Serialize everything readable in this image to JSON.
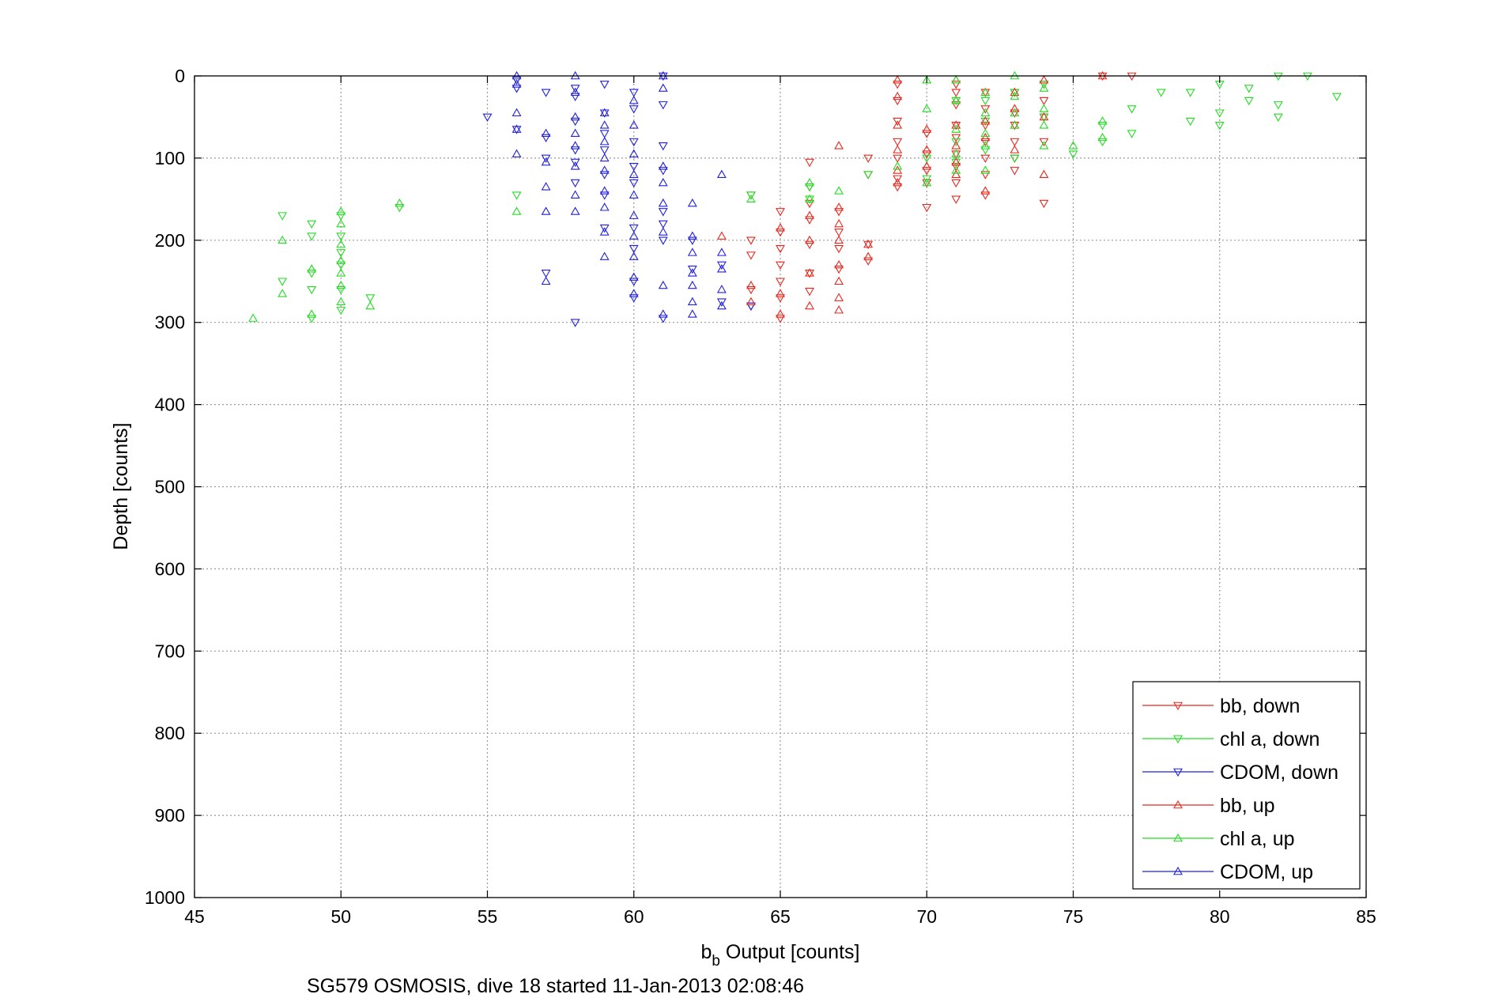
{
  "chart_data": {
    "type": "scatter",
    "title": "",
    "xlabel": {
      "base": "b",
      "sub": "b",
      "rest": " Output [counts]"
    },
    "ylabel": "Depth [counts]",
    "caption": "SG579 OSMOSIS, dive 18 started 11-Jan-2013 02:08:46",
    "xlim": [
      45,
      85
    ],
    "ylim": [
      0,
      1000
    ],
    "y_reversed": true,
    "grid": true,
    "legend_position": "bottom-right",
    "x_ticks": [
      "45",
      "50",
      "55",
      "60",
      "65",
      "70",
      "75",
      "80",
      "85"
    ],
    "y_ticks": [
      "0",
      "100",
      "200",
      "300",
      "400",
      "500",
      "600",
      "700",
      "800",
      "900",
      "1000"
    ],
    "series": [
      {
        "name": "bb, down",
        "color": "#e8281e",
        "marker": "triangle-down",
        "points": [
          [
            64,
            145
          ],
          [
            64,
            200
          ],
          [
            64,
            218
          ],
          [
            64,
            260
          ],
          [
            64,
            280
          ],
          [
            65,
            165
          ],
          [
            65,
            190
          ],
          [
            65,
            210
          ],
          [
            65,
            230
          ],
          [
            65,
            250
          ],
          [
            65,
            270
          ],
          [
            65,
            295
          ],
          [
            66,
            105
          ],
          [
            66,
            135
          ],
          [
            66,
            155
          ],
          [
            66,
            175
          ],
          [
            66,
            205
          ],
          [
            66,
            240
          ],
          [
            66,
            262
          ],
          [
            67,
            165
          ],
          [
            67,
            190
          ],
          [
            67,
            210
          ],
          [
            67,
            235
          ],
          [
            68,
            100
          ],
          [
            68,
            120
          ],
          [
            68,
            205
          ],
          [
            68,
            225
          ],
          [
            69,
            10
          ],
          [
            69,
            30
          ],
          [
            69,
            55
          ],
          [
            69,
            80
          ],
          [
            69,
            100
          ],
          [
            69,
            125
          ],
          [
            69,
            135
          ],
          [
            70,
            70
          ],
          [
            70,
            95
          ],
          [
            70,
            115
          ],
          [
            70,
            130
          ],
          [
            70,
            160
          ],
          [
            71,
            10
          ],
          [
            71,
            20
          ],
          [
            71,
            35
          ],
          [
            71,
            60
          ],
          [
            71,
            75
          ],
          [
            71,
            95
          ],
          [
            71,
            110
          ],
          [
            71,
            130
          ],
          [
            71,
            150
          ],
          [
            72,
            20
          ],
          [
            72,
            40
          ],
          [
            72,
            60
          ],
          [
            72,
            80
          ],
          [
            72,
            100
          ],
          [
            72,
            120
          ],
          [
            72,
            145
          ],
          [
            73,
            20
          ],
          [
            73,
            45
          ],
          [
            73,
            60
          ],
          [
            73,
            80
          ],
          [
            73,
            100
          ],
          [
            73,
            115
          ],
          [
            74,
            10
          ],
          [
            74,
            30
          ],
          [
            74,
            50
          ],
          [
            74,
            80
          ],
          [
            74,
            155
          ],
          [
            76,
            0
          ],
          [
            77,
            0
          ]
        ]
      },
      {
        "name": "chl a, down",
        "color": "#22dd22",
        "marker": "triangle-down",
        "points": [
          [
            48,
            170
          ],
          [
            48,
            250
          ],
          [
            49,
            180
          ],
          [
            49,
            195
          ],
          [
            49,
            240
          ],
          [
            49,
            260
          ],
          [
            49,
            295
          ],
          [
            50,
            170
          ],
          [
            50,
            195
          ],
          [
            50,
            215
          ],
          [
            50,
            230
          ],
          [
            50,
            260
          ],
          [
            50,
            285
          ],
          [
            51,
            270
          ],
          [
            52,
            160
          ],
          [
            56,
            145
          ],
          [
            64,
            145
          ],
          [
            66,
            135
          ],
          [
            66,
            150
          ],
          [
            68,
            120
          ],
          [
            70,
            100
          ],
          [
            70,
            125
          ],
          [
            71,
            30
          ],
          [
            71,
            80
          ],
          [
            71,
            105
          ],
          [
            72,
            30
          ],
          [
            72,
            55
          ],
          [
            72,
            90
          ],
          [
            73,
            20
          ],
          [
            73,
            100
          ],
          [
            74,
            10
          ],
          [
            74,
            50
          ],
          [
            75,
            95
          ],
          [
            76,
            60
          ],
          [
            76,
            80
          ],
          [
            77,
            40
          ],
          [
            77,
            70
          ],
          [
            78,
            20
          ],
          [
            79,
            20
          ],
          [
            79,
            55
          ],
          [
            80,
            10
          ],
          [
            80,
            45
          ],
          [
            80,
            60
          ],
          [
            81,
            15
          ],
          [
            81,
            30
          ],
          [
            82,
            0
          ],
          [
            82,
            35
          ],
          [
            82,
            50
          ],
          [
            83,
            0
          ],
          [
            84,
            25
          ]
        ]
      },
      {
        "name": "CDOM, down",
        "color": "#2020dd",
        "marker": "triangle-down",
        "points": [
          [
            55,
            50
          ],
          [
            56,
            5
          ],
          [
            56,
            15
          ],
          [
            56,
            65
          ],
          [
            57,
            20
          ],
          [
            57,
            75
          ],
          [
            57,
            100
          ],
          [
            57,
            240
          ],
          [
            58,
            15
          ],
          [
            58,
            25
          ],
          [
            58,
            55
          ],
          [
            58,
            90
          ],
          [
            58,
            105
          ],
          [
            58,
            130
          ],
          [
            58,
            300
          ],
          [
            59,
            10
          ],
          [
            59,
            45
          ],
          [
            59,
            70
          ],
          [
            59,
            90
          ],
          [
            59,
            120
          ],
          [
            59,
            145
          ],
          [
            59,
            185
          ],
          [
            60,
            20
          ],
          [
            60,
            40
          ],
          [
            60,
            80
          ],
          [
            60,
            110
          ],
          [
            60,
            130
          ],
          [
            60,
            185
          ],
          [
            60,
            210
          ],
          [
            60,
            250
          ],
          [
            60,
            270
          ],
          [
            61,
            0
          ],
          [
            61,
            35
          ],
          [
            61,
            85
          ],
          [
            61,
            115
          ],
          [
            61,
            165
          ],
          [
            61,
            180
          ],
          [
            61,
            200
          ],
          [
            61,
            295
          ],
          [
            62,
            200
          ],
          [
            62,
            235
          ],
          [
            63,
            230
          ],
          [
            63,
            275
          ],
          [
            64,
            280
          ]
        ]
      },
      {
        "name": "bb, up",
        "color": "#e8281e",
        "marker": "triangle-up",
        "points": [
          [
            63,
            195
          ],
          [
            64,
            255
          ],
          [
            64,
            275
          ],
          [
            65,
            185
          ],
          [
            65,
            265
          ],
          [
            65,
            290
          ],
          [
            66,
            170
          ],
          [
            66,
            200
          ],
          [
            66,
            240
          ],
          [
            66,
            280
          ],
          [
            67,
            85
          ],
          [
            67,
            160
          ],
          [
            67,
            180
          ],
          [
            67,
            200
          ],
          [
            67,
            230
          ],
          [
            67,
            250
          ],
          [
            67,
            270
          ],
          [
            67,
            285
          ],
          [
            68,
            205
          ],
          [
            68,
            220
          ],
          [
            69,
            5
          ],
          [
            69,
            25
          ],
          [
            69,
            60
          ],
          [
            69,
            90
          ],
          [
            69,
            115
          ],
          [
            69,
            130
          ],
          [
            70,
            65
          ],
          [
            70,
            90
          ],
          [
            70,
            110
          ],
          [
            71,
            5
          ],
          [
            71,
            30
          ],
          [
            71,
            60
          ],
          [
            71,
            85
          ],
          [
            71,
            105
          ],
          [
            71,
            120
          ],
          [
            72,
            20
          ],
          [
            72,
            55
          ],
          [
            72,
            75
          ],
          [
            72,
            140
          ],
          [
            73,
            20
          ],
          [
            73,
            40
          ],
          [
            73,
            60
          ],
          [
            73,
            90
          ],
          [
            74,
            5
          ],
          [
            74,
            50
          ],
          [
            74,
            120
          ],
          [
            76,
            0
          ]
        ]
      },
      {
        "name": "chl a, up",
        "color": "#22dd22",
        "marker": "triangle-up",
        "points": [
          [
            47,
            295
          ],
          [
            48,
            200
          ],
          [
            48,
            265
          ],
          [
            49,
            235
          ],
          [
            49,
            290
          ],
          [
            50,
            165
          ],
          [
            50,
            180
          ],
          [
            50,
            205
          ],
          [
            50,
            225
          ],
          [
            50,
            240
          ],
          [
            50,
            255
          ],
          [
            50,
            275
          ],
          [
            51,
            280
          ],
          [
            52,
            155
          ],
          [
            56,
            165
          ],
          [
            64,
            150
          ],
          [
            66,
            130
          ],
          [
            66,
            150
          ],
          [
            67,
            140
          ],
          [
            69,
            110
          ],
          [
            70,
            5
          ],
          [
            70,
            40
          ],
          [
            70,
            130
          ],
          [
            71,
            5
          ],
          [
            71,
            30
          ],
          [
            71,
            65
          ],
          [
            71,
            95
          ],
          [
            71,
            115
          ],
          [
            72,
            20
          ],
          [
            72,
            45
          ],
          [
            72,
            70
          ],
          [
            72,
            85
          ],
          [
            72,
            115
          ],
          [
            73,
            0
          ],
          [
            73,
            25
          ],
          [
            73,
            45
          ],
          [
            73,
            60
          ],
          [
            74,
            15
          ],
          [
            74,
            40
          ],
          [
            74,
            60
          ],
          [
            74,
            85
          ],
          [
            75,
            85
          ],
          [
            76,
            55
          ],
          [
            76,
            75
          ]
        ]
      },
      {
        "name": "CDOM, up",
        "color": "#2020dd",
        "marker": "triangle-up",
        "points": [
          [
            56,
            0
          ],
          [
            56,
            10
          ],
          [
            56,
            45
          ],
          [
            56,
            65
          ],
          [
            56,
            95
          ],
          [
            57,
            70
          ],
          [
            57,
            105
          ],
          [
            57,
            135
          ],
          [
            57,
            165
          ],
          [
            57,
            250
          ],
          [
            58,
            0
          ],
          [
            58,
            20
          ],
          [
            58,
            50
          ],
          [
            58,
            70
          ],
          [
            58,
            85
          ],
          [
            58,
            110
          ],
          [
            58,
            145
          ],
          [
            58,
            165
          ],
          [
            59,
            45
          ],
          [
            59,
            60
          ],
          [
            59,
            80
          ],
          [
            59,
            100
          ],
          [
            59,
            115
          ],
          [
            59,
            140
          ],
          [
            59,
            160
          ],
          [
            59,
            190
          ],
          [
            59,
            220
          ],
          [
            60,
            30
          ],
          [
            60,
            60
          ],
          [
            60,
            95
          ],
          [
            60,
            120
          ],
          [
            60,
            145
          ],
          [
            60,
            170
          ],
          [
            60,
            195
          ],
          [
            60,
            220
          ],
          [
            60,
            245
          ],
          [
            60,
            265
          ],
          [
            61,
            0
          ],
          [
            61,
            15
          ],
          [
            61,
            110
          ],
          [
            61,
            130
          ],
          [
            61,
            155
          ],
          [
            61,
            190
          ],
          [
            61,
            255
          ],
          [
            61,
            290
          ],
          [
            62,
            155
          ],
          [
            62,
            195
          ],
          [
            62,
            215
          ],
          [
            62,
            240
          ],
          [
            62,
            255
          ],
          [
            62,
            275
          ],
          [
            62,
            290
          ],
          [
            63,
            120
          ],
          [
            63,
            215
          ],
          [
            63,
            235
          ],
          [
            63,
            260
          ],
          [
            63,
            280
          ]
        ]
      }
    ]
  }
}
